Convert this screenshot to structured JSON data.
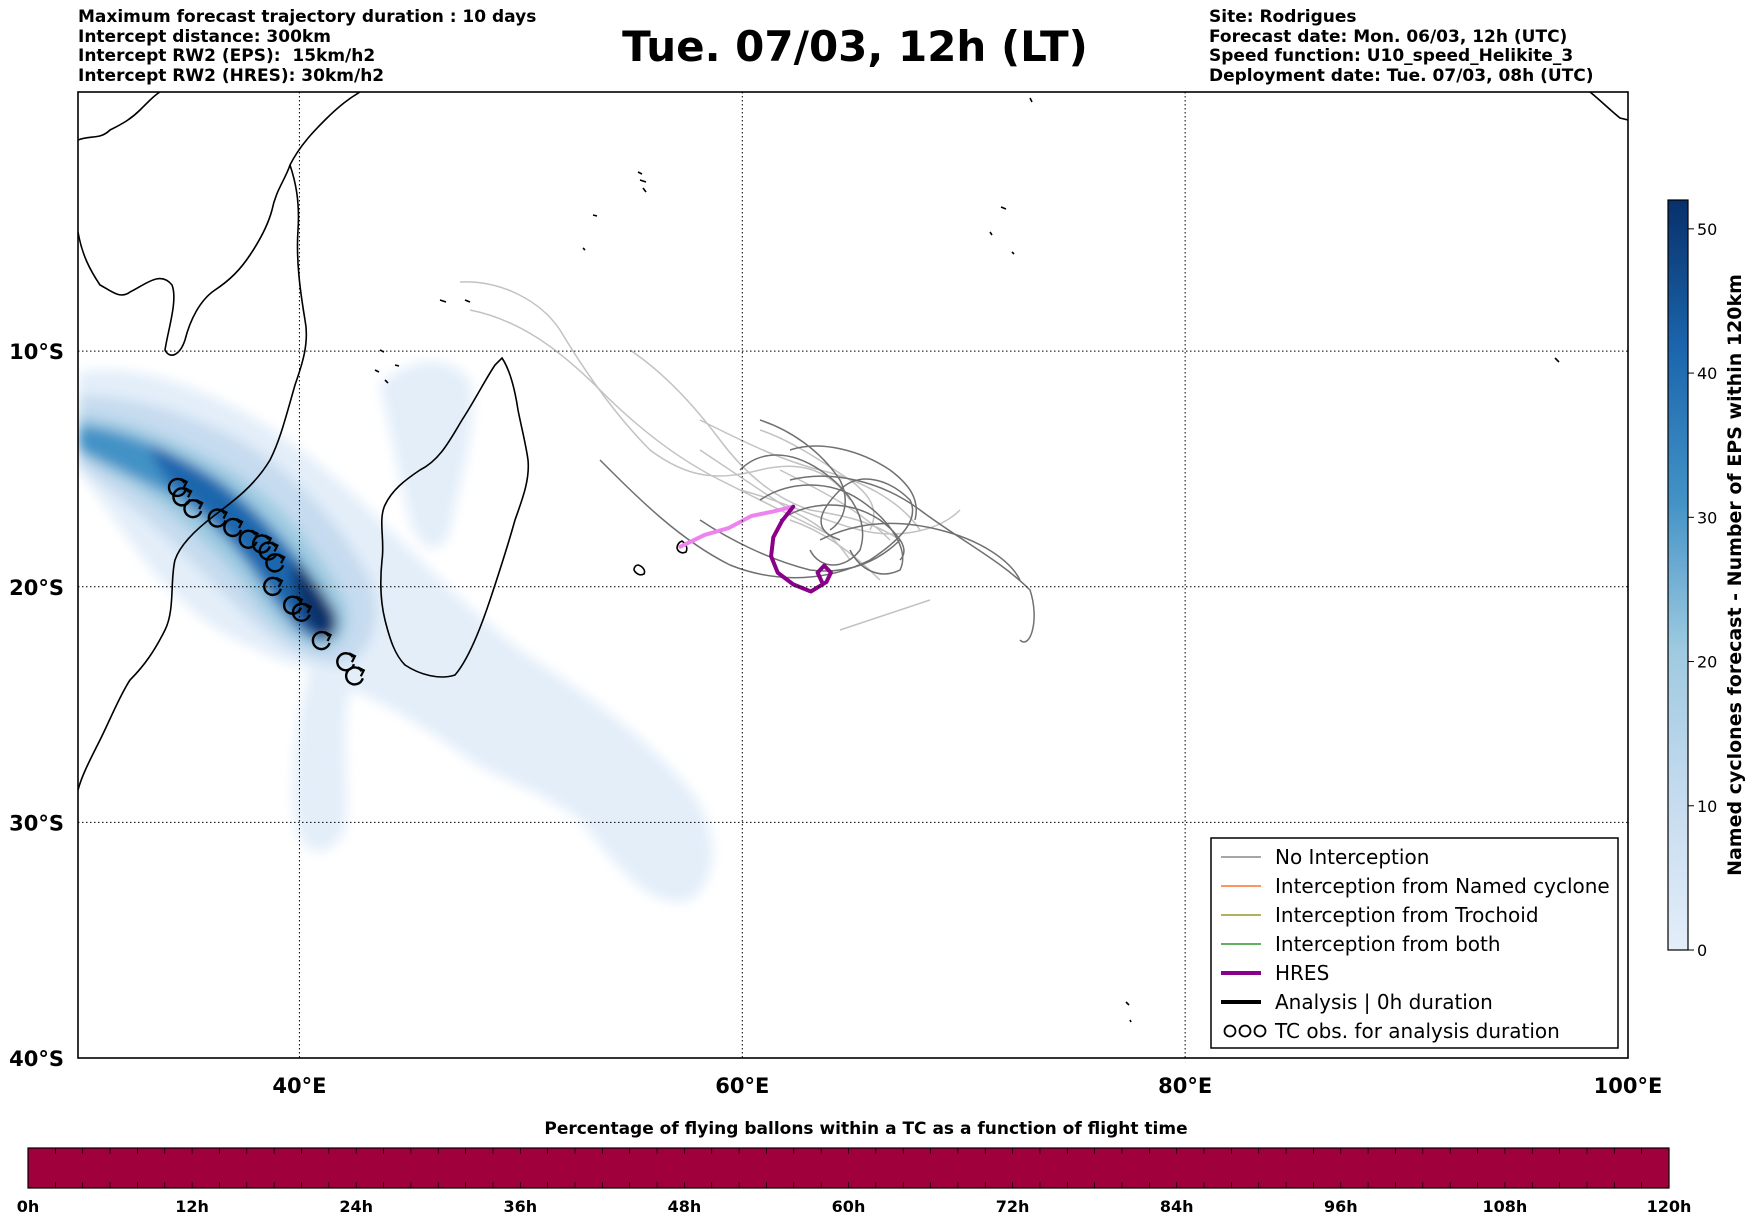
{
  "header": {
    "left": [
      "Maximum forecast trajectory duration : 10 days",
      "Intercept distance: 300km",
      "Intercept RW2 (EPS):  15km/h2",
      "Intercept RW2 (HRES): 30km/h2"
    ],
    "title": "Tue. 07/03, 12h (LT)",
    "right": [
      "Site: Rodrigues",
      "Forecast date: Mon. 06/03, 12h (UTC)",
      "Speed function: U10_speed_Helikite_3",
      "Deployment date: Tue. 07/03, 08h (UTC)"
    ]
  },
  "map": {
    "lon_range": [
      30,
      100
    ],
    "lat_range": [
      -40,
      1
    ],
    "lon_ticks": [
      {
        "lon": 40,
        "label": "40°E"
      },
      {
        "lon": 60,
        "label": "60°E"
      },
      {
        "lon": 80,
        "label": "80°E"
      },
      {
        "lon": 100,
        "label": "100°E"
      }
    ],
    "lat_ticks": [
      {
        "lat": -10,
        "label": "10°S"
      },
      {
        "lat": -20,
        "label": "20°S"
      },
      {
        "lat": -30,
        "label": "30°S"
      },
      {
        "lat": -40,
        "label": "40°S"
      }
    ],
    "colors": {
      "no_interception": "#707070",
      "no_interception_light": "#c2c2c2",
      "named_cyclone": "#ff5500",
      "trochoid": "#808000",
      "both": "#008000",
      "hres": "#8b008b",
      "hres_early": "#ee82ee",
      "analysis": "#000000",
      "density_max": "#08306b",
      "density_min": "#e3eef9",
      "flight_bar": "#a0003c"
    },
    "tc_observations": [
      [
        34.5,
        -15.8
      ],
      [
        34.7,
        -16.2
      ],
      [
        35.2,
        -16.7
      ],
      [
        36.3,
        -17.1
      ],
      [
        37.0,
        -17.5
      ],
      [
        37.7,
        -18.0
      ],
      [
        38.3,
        -18.2
      ],
      [
        38.6,
        -18.5
      ],
      [
        38.9,
        -19.0
      ],
      [
        38.8,
        -20.0
      ],
      [
        39.7,
        -20.8
      ],
      [
        40.1,
        -21.1
      ],
      [
        41.0,
        -22.3
      ],
      [
        42.1,
        -23.2
      ],
      [
        42.5,
        -23.8
      ]
    ],
    "hres_track": [
      [
        57.2,
        -18.3
      ],
      [
        58.3,
        -17.8
      ],
      [
        59.4,
        -17.5
      ],
      [
        60.4,
        -17.0
      ],
      [
        61.4,
        -16.8
      ],
      [
        62.3,
        -16.6
      ],
      [
        61.8,
        -17.2
      ],
      [
        61.4,
        -17.9
      ],
      [
        61.3,
        -18.7
      ],
      [
        61.6,
        -19.4
      ],
      [
        62.3,
        -19.9
      ],
      [
        63.1,
        -20.2
      ],
      [
        63.8,
        -19.8
      ],
      [
        64.0,
        -19.4
      ],
      [
        63.7,
        -19.1
      ],
      [
        63.4,
        -19.4
      ],
      [
        63.6,
        -19.8
      ]
    ]
  },
  "colorbar": {
    "title": "Named cyclones forecast - Number of EPS within 120km",
    "min": 0,
    "max": 52,
    "ticks": [
      0,
      10,
      20,
      30,
      40,
      50
    ]
  },
  "legend": {
    "items": [
      {
        "label": "No Interception",
        "style": "thin",
        "color": "#707070"
      },
      {
        "label": "Interception from Named cyclone",
        "style": "thin",
        "color": "#ff5500"
      },
      {
        "label": "Interception from Trochoid",
        "style": "thin",
        "color": "#808000"
      },
      {
        "label": "Interception from both",
        "style": "thin",
        "color": "#008000"
      },
      {
        "label": "HRES",
        "style": "thick",
        "color": "#8b008b"
      },
      {
        "label": "Analysis | 0h duration",
        "style": "thick",
        "color": "#000000"
      },
      {
        "label": "TC obs. for analysis duration",
        "style": "symbol",
        "color": "#000000"
      }
    ]
  },
  "flight_bar": {
    "title": "Percentage of flying ballons within a TC as a function of flight time",
    "tick_labels": [
      "0h",
      "12h",
      "24h",
      "36h",
      "48h",
      "60h",
      "72h",
      "84h",
      "96h",
      "108h",
      "120h"
    ]
  }
}
